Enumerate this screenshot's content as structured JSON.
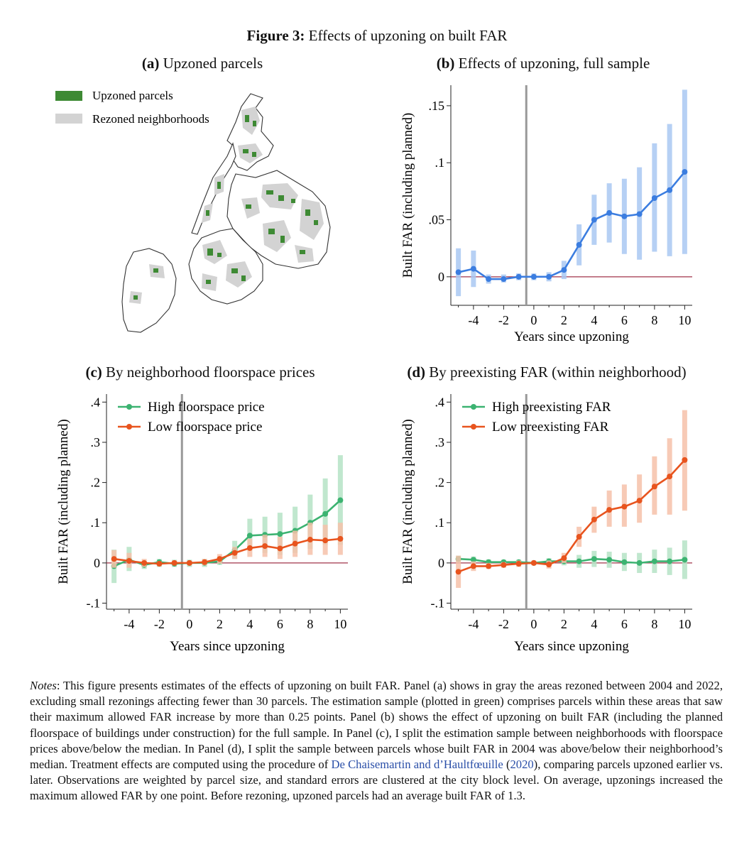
{
  "figure": {
    "label": "Figure 3:",
    "title": "Effects of upzoning on built FAR"
  },
  "panels": {
    "a": {
      "letter": "(a)",
      "title": "Upzoned parcels",
      "legend": [
        {
          "label": "Upzoned parcels",
          "color": "#3e8a34"
        },
        {
          "label": "Rezoned neighborhoods",
          "color": "#d3d3d3"
        }
      ]
    },
    "b": {
      "letter": "(b)",
      "title": "Effects of upzoning, full sample"
    },
    "c": {
      "letter": "(c)",
      "title": "By neighborhood floorspace prices"
    },
    "d": {
      "letter": "(d)",
      "title": "By preexisting FAR (within neighborhood)"
    }
  },
  "chart_data": [
    {
      "panel": "b",
      "type": "line",
      "xlabel": "Years since upzoning",
      "ylabel": "Built FAR (including planned)",
      "xlim": [
        -5.5,
        10.5
      ],
      "ylim": [
        -0.025,
        0.168
      ],
      "xticks": [
        -4,
        -2,
        0,
        2,
        4,
        6,
        8,
        10
      ],
      "xtick_labels": [
        "-4",
        "-2",
        "0",
        "2",
        "4",
        "6",
        "8",
        "10"
      ],
      "yticks": [
        0,
        0.05,
        0.1,
        0.15
      ],
      "ytick_labels": [
        "0",
        ".05",
        ".1",
        ".15"
      ],
      "event_line_x": -0.5,
      "series": [
        {
          "color": "#3b7de0",
          "ci_color": "#a9c8f2",
          "x": [
            -5,
            -4,
            -3,
            -2,
            -1,
            0,
            1,
            2,
            3,
            4,
            5,
            6,
            7,
            8,
            9,
            10
          ],
          "y": [
            0.004,
            0.007,
            -0.002,
            -0.002,
            0,
            0,
            0,
            0.006,
            0.028,
            0.05,
            0.056,
            0.053,
            0.055,
            0.069,
            0.076,
            0.092
          ],
          "ci_low": [
            -0.017,
            -0.009,
            -0.006,
            -0.005,
            -0.003,
            -0.003,
            -0.004,
            -0.002,
            0.01,
            0.028,
            0.03,
            0.02,
            0.015,
            0.022,
            0.018,
            0.02
          ],
          "ci_high": [
            0.025,
            0.023,
            0.002,
            0.002,
            0.003,
            0.003,
            0.004,
            0.014,
            0.046,
            0.072,
            0.082,
            0.086,
            0.096,
            0.117,
            0.134,
            0.164
          ]
        }
      ]
    },
    {
      "panel": "c",
      "type": "line",
      "xlabel": "Years since upzoning",
      "ylabel": "Built FAR (including planned)",
      "xlim": [
        -5.5,
        10.5
      ],
      "ylim": [
        -0.115,
        0.42
      ],
      "xticks": [
        -4,
        -2,
        0,
        2,
        4,
        6,
        8,
        10
      ],
      "xtick_labels": [
        "-4",
        "-2",
        "0",
        "2",
        "4",
        "6",
        "8",
        "10"
      ],
      "yticks": [
        -0.1,
        0,
        0.1,
        0.2,
        0.3,
        0.4
      ],
      "ytick_labels": [
        "-.1",
        "0",
        ".1",
        ".2",
        ".3",
        ".4"
      ],
      "event_line_x": -0.5,
      "legend": "top-left",
      "series": [
        {
          "name": "High floorspace price",
          "color": "#3cb371",
          "ci_color": "#b5e3c6",
          "x": [
            -5,
            -4,
            -3,
            -2,
            -1,
            0,
            1,
            2,
            3,
            4,
            5,
            6,
            7,
            8,
            9,
            10
          ],
          "y": [
            -0.008,
            0.008,
            -0.005,
            0.002,
            -0.002,
            0,
            0,
            0.004,
            0.032,
            0.068,
            0.07,
            0.072,
            0.08,
            0.1,
            0.122,
            0.156
          ],
          "ci_low": [
            -0.05,
            -0.02,
            -0.015,
            -0.01,
            -0.01,
            -0.01,
            -0.01,
            -0.005,
            0.01,
            0.03,
            0.025,
            0.02,
            0.025,
            0.035,
            0.045,
            0.045
          ],
          "ci_high": [
            0.033,
            0.04,
            0.005,
            0.01,
            0.008,
            0.008,
            0.01,
            0.015,
            0.055,
            0.11,
            0.115,
            0.125,
            0.14,
            0.17,
            0.21,
            0.268
          ]
        },
        {
          "name": "Low floorspace price",
          "color": "#e8541e",
          "ci_color": "#f6c1a9",
          "x": [
            -5,
            -4,
            -3,
            -2,
            -1,
            0,
            1,
            2,
            3,
            4,
            5,
            6,
            7,
            8,
            9,
            10
          ],
          "y": [
            0.01,
            0.005,
            0,
            -0.002,
            0,
            0,
            0.002,
            0.01,
            0.025,
            0.037,
            0.042,
            0.036,
            0.048,
            0.058,
            0.056,
            0.06
          ],
          "ci_low": [
            -0.012,
            -0.012,
            -0.01,
            -0.008,
            -0.006,
            -0.006,
            -0.006,
            -0.002,
            0.01,
            0.015,
            0.015,
            0.01,
            0.015,
            0.02,
            0.02,
            0.02
          ],
          "ci_high": [
            0.032,
            0.025,
            0.01,
            0.004,
            0.006,
            0.006,
            0.01,
            0.022,
            0.04,
            0.06,
            0.07,
            0.065,
            0.08,
            0.1,
            0.095,
            0.1
          ]
        }
      ]
    },
    {
      "panel": "d",
      "type": "line",
      "xlabel": "Years since upzoning",
      "ylabel": "Built FAR (including planned)",
      "xlim": [
        -5.5,
        10.5
      ],
      "ylim": [
        -0.115,
        0.42
      ],
      "xticks": [
        -4,
        -2,
        0,
        2,
        4,
        6,
        8,
        10
      ],
      "xtick_labels": [
        "-4",
        "-2",
        "0",
        "2",
        "4",
        "6",
        "8",
        "10"
      ],
      "yticks": [
        -0.1,
        0,
        0.1,
        0.2,
        0.3,
        0.4
      ],
      "ytick_labels": [
        "-.1",
        "0",
        ".1",
        ".2",
        ".3",
        ".4"
      ],
      "event_line_x": -0.5,
      "legend": "top-left",
      "series": [
        {
          "name": "High preexisting FAR",
          "color": "#3cb371",
          "ci_color": "#b5e3c6",
          "x": [
            -5,
            -4,
            -3,
            -2,
            -1,
            0,
            1,
            2,
            3,
            4,
            5,
            6,
            7,
            8,
            9,
            10
          ],
          "y": [
            0.01,
            0.008,
            0.002,
            0.002,
            0.002,
            0,
            0.004,
            0.004,
            0.004,
            0.01,
            0.008,
            0.002,
            0,
            0.004,
            0.004,
            0.008
          ],
          "ci_low": [
            0.002,
            0,
            -0.005,
            -0.004,
            -0.004,
            -0.004,
            -0.004,
            -0.006,
            -0.012,
            -0.01,
            -0.012,
            -0.02,
            -0.025,
            -0.025,
            -0.03,
            -0.04
          ],
          "ci_high": [
            0.018,
            0.016,
            0.009,
            0.008,
            0.008,
            0.004,
            0.012,
            0.014,
            0.02,
            0.03,
            0.028,
            0.025,
            0.025,
            0.033,
            0.038,
            0.056
          ]
        },
        {
          "name": "Low preexisting FAR",
          "color": "#e8541e",
          "ci_color": "#f6c1a9",
          "x": [
            -5,
            -4,
            -3,
            -2,
            -1,
            0,
            1,
            2,
            3,
            4,
            5,
            6,
            7,
            8,
            9,
            10
          ],
          "y": [
            -0.022,
            -0.008,
            -0.008,
            -0.005,
            -0.002,
            0,
            -0.004,
            0.012,
            0.065,
            0.108,
            0.132,
            0.14,
            0.155,
            0.19,
            0.215,
            0.256
          ],
          "ci_low": [
            -0.062,
            -0.02,
            -0.015,
            -0.012,
            -0.01,
            -0.006,
            -0.014,
            0,
            0.04,
            0.075,
            0.09,
            0.09,
            0.1,
            0.12,
            0.12,
            0.13
          ],
          "ci_high": [
            0.018,
            0.004,
            0,
            0.002,
            0.006,
            0.006,
            0.006,
            0.025,
            0.09,
            0.14,
            0.18,
            0.195,
            0.22,
            0.265,
            0.31,
            0.38
          ]
        }
      ]
    }
  ],
  "notes": {
    "lead": "Notes",
    "text_before_link": ": This figure presents estimates of the effects of upzoning on built FAR. Panel (a) shows in gray the areas rezoned between 2004 and 2022, excluding small rezonings affecting fewer than 30 parcels. The estimation sample (plotted in green) comprises parcels within these areas that saw their maximum allowed FAR increase by more than 0.25 points. Panel (b) shows the effect of upzoning on built FAR (including the planned floorspace of buildings under construction) for the full sample. In Panel (c), I split the estimation sample between neighborhoods with floorspace prices above/below the median. In Panel (d), I split the sample between parcels whose built FAR in 2004 was above/below their neighborhood’s median. Treatment effects are computed using the procedure of ",
    "link_authors": "De Chaisemartin and d’Haultfœuille",
    "link_open": " (",
    "link_year": "2020",
    "link_close": ")",
    "text_after_link": ", comparing parcels upzoned earlier vs. later. Observations are weighted by parcel size, and standard errors are clustered at the city block level. On average, upzonings increased the maximum allowed FAR by one point. Before rezoning, upzoned parcels had an average built FAR of 1.3."
  }
}
